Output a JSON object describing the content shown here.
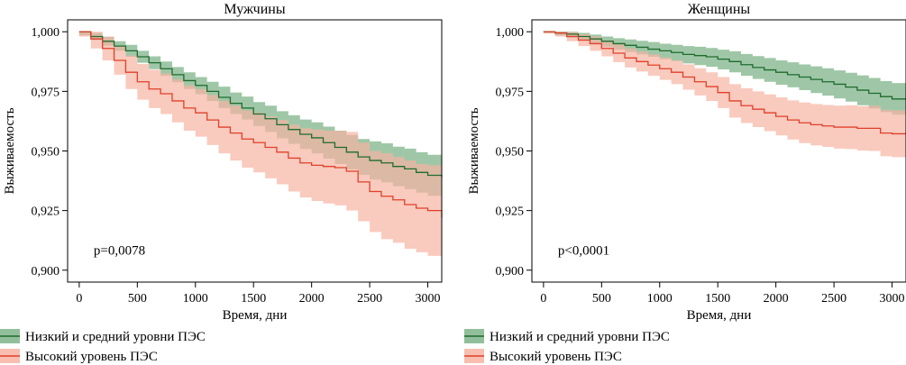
{
  "chart_data": [
    {
      "type": "line",
      "title": "Мужчины",
      "xlabel": "Время, дни",
      "ylabel": "Выживаемость",
      "xlim": [
        -100,
        3120
      ],
      "ylim": [
        0.895,
        1.005
      ],
      "xticks": [
        0,
        500,
        1000,
        1500,
        2000,
        2500,
        3000
      ],
      "xtick_labels": [
        "0",
        "500",
        "1000",
        "1500",
        "2000",
        "2500",
        "3000"
      ],
      "yticks": [
        0.9,
        0.925,
        0.95,
        0.975,
        1.0
      ],
      "ytick_labels": [
        "0,900",
        "0,925",
        "0,950",
        "0,975",
        "1,000"
      ],
      "annotation": "p=0,0078",
      "grid": false,
      "series": [
        {
          "name": "Низкий и средний уровни ПЭС",
          "color": "#1e6b2e",
          "band_color": "#7fb48a",
          "x": [
            0,
            100,
            200,
            300,
            400,
            500,
            600,
            700,
            800,
            900,
            1000,
            1100,
            1200,
            1300,
            1400,
            1500,
            1600,
            1700,
            1800,
            1900,
            2000,
            2100,
            2200,
            2300,
            2400,
            2500,
            2600,
            2700,
            2800,
            2900,
            3000,
            3120
          ],
          "y": [
            1.0,
            0.998,
            0.996,
            0.994,
            0.992,
            0.9895,
            0.987,
            0.9845,
            0.982,
            0.9795,
            0.9775,
            0.975,
            0.9725,
            0.97,
            0.968,
            0.9655,
            0.9635,
            0.961,
            0.959,
            0.957,
            0.9555,
            0.9535,
            0.9515,
            0.9495,
            0.9475,
            0.946,
            0.945,
            0.9435,
            0.9425,
            0.941,
            0.9398,
            0.939
          ],
          "lower": [
            0.9985,
            0.9965,
            0.9942,
            0.992,
            0.9895,
            0.987,
            0.9843,
            0.9815,
            0.9788,
            0.976,
            0.9738,
            0.971,
            0.968,
            0.9655,
            0.9632,
            0.9605,
            0.958,
            0.9553,
            0.953,
            0.9508,
            0.949,
            0.9468,
            0.9445,
            0.9423,
            0.94,
            0.938,
            0.9368,
            0.9352,
            0.934,
            0.9325,
            0.9312,
            0.9305
          ],
          "upper": [
            1.0,
            0.9995,
            0.9978,
            0.996,
            0.9945,
            0.992,
            0.9897,
            0.9875,
            0.9852,
            0.983,
            0.981,
            0.979,
            0.977,
            0.9745,
            0.9728,
            0.9705,
            0.969,
            0.9667,
            0.965,
            0.9632,
            0.962,
            0.9602,
            0.9585,
            0.9567,
            0.955,
            0.954,
            0.9532,
            0.9518,
            0.951,
            0.9495,
            0.9484,
            0.9475
          ]
        },
        {
          "name": "Высокий уровень ПЭС",
          "color": "#e0402a",
          "band_color": "#f7b3a2",
          "x": [
            0,
            100,
            200,
            300,
            400,
            500,
            600,
            700,
            800,
            900,
            1000,
            1100,
            1200,
            1300,
            1400,
            1500,
            1600,
            1700,
            1800,
            1900,
            2000,
            2100,
            2200,
            2300,
            2400,
            2500,
            2600,
            2700,
            2800,
            2900,
            3000,
            3120
          ],
          "y": [
            1.0,
            0.997,
            0.993,
            0.988,
            0.983,
            0.979,
            0.976,
            0.974,
            0.971,
            0.968,
            0.966,
            0.963,
            0.96,
            0.9575,
            0.955,
            0.9535,
            0.9515,
            0.9495,
            0.947,
            0.945,
            0.944,
            0.9435,
            0.943,
            0.9415,
            0.937,
            0.933,
            0.931,
            0.9295,
            0.9275,
            0.926,
            0.925,
            0.922
          ],
          "lower": [
            0.998,
            0.993,
            0.988,
            0.982,
            0.976,
            0.9715,
            0.968,
            0.9655,
            0.962,
            0.9585,
            0.956,
            0.9525,
            0.949,
            0.946,
            0.943,
            0.941,
            0.9385,
            0.936,
            0.933,
            0.9305,
            0.929,
            0.928,
            0.9272,
            0.925,
            0.9205,
            0.916,
            0.913,
            0.9115,
            0.909,
            0.9075,
            0.906,
            0.9075
          ],
          "upper": [
            1.0,
            1.0,
            0.998,
            0.994,
            0.99,
            0.9865,
            0.984,
            0.9825,
            0.98,
            0.9775,
            0.976,
            0.9735,
            0.971,
            0.969,
            0.967,
            0.966,
            0.9645,
            0.963,
            0.961,
            0.9595,
            0.959,
            0.9585,
            0.9585,
            0.958,
            0.9535,
            0.95,
            0.949,
            0.9475,
            0.946,
            0.9445,
            0.944,
            0.9365
          ]
        }
      ]
    },
    {
      "type": "line",
      "title": "Женщины",
      "xlabel": "Время, дни",
      "ylabel": "Выживаемость",
      "xlim": [
        -100,
        3120
      ],
      "ylim": [
        0.895,
        1.005
      ],
      "xticks": [
        0,
        500,
        1000,
        1500,
        2000,
        2500,
        3000
      ],
      "xtick_labels": [
        "0",
        "500",
        "1000",
        "1500",
        "2000",
        "2500",
        "3000"
      ],
      "yticks": [
        0.9,
        0.925,
        0.95,
        0.975,
        1.0
      ],
      "ytick_labels": [
        "0,900",
        "0,925",
        "0,950",
        "0,975",
        "1,000"
      ],
      "annotation": "p<0,0001",
      "grid": false,
      "series": [
        {
          "name": "Низкий и средний уровни ПЭС",
          "color": "#1e6b2e",
          "band_color": "#7fb48a",
          "x": [
            0,
            100,
            200,
            300,
            400,
            500,
            600,
            700,
            800,
            900,
            1000,
            1100,
            1200,
            1300,
            1400,
            1500,
            1600,
            1700,
            1800,
            1900,
            2000,
            2100,
            2200,
            2300,
            2400,
            2500,
            2600,
            2700,
            2800,
            2900,
            3000,
            3120
          ],
          "y": [
            1.0,
            0.9995,
            0.999,
            0.998,
            0.997,
            0.996,
            0.995,
            0.9943,
            0.9935,
            0.9927,
            0.992,
            0.9913,
            0.9905,
            0.99,
            0.9895,
            0.9885,
            0.9875,
            0.9862,
            0.985,
            0.984,
            0.983,
            0.982,
            0.981,
            0.98,
            0.979,
            0.978,
            0.9768,
            0.9755,
            0.9742,
            0.9728,
            0.9718,
            0.9712
          ],
          "lower": [
            0.9995,
            0.9985,
            0.9975,
            0.9962,
            0.995,
            0.9937,
            0.9925,
            0.9915,
            0.9905,
            0.9895,
            0.9885,
            0.9877,
            0.9867,
            0.986,
            0.9853,
            0.9842,
            0.983,
            0.9815,
            0.9802,
            0.979,
            0.9778,
            0.9767,
            0.9755,
            0.9743,
            0.9732,
            0.972,
            0.9707,
            0.9692,
            0.9678,
            0.9663,
            0.9652,
            0.9645
          ],
          "upper": [
            1.0,
            1.0,
            1.0,
            0.9995,
            0.9988,
            0.998,
            0.9973,
            0.9968,
            0.9962,
            0.9957,
            0.995,
            0.9945,
            0.994,
            0.9937,
            0.9932,
            0.9925,
            0.9918,
            0.9907,
            0.9898,
            0.989,
            0.988,
            0.9872,
            0.9863,
            0.9855,
            0.9847,
            0.9838,
            0.9828,
            0.9817,
            0.9806,
            0.9793,
            0.9785,
            0.978
          ]
        },
        {
          "name": "Высокий уровень ПЭС",
          "color": "#e0402a",
          "band_color": "#f7b3a2",
          "x": [
            0,
            100,
            200,
            300,
            400,
            500,
            600,
            700,
            800,
            900,
            1000,
            1100,
            1200,
            1300,
            1400,
            1500,
            1600,
            1700,
            1800,
            1900,
            2000,
            2100,
            2200,
            2300,
            2400,
            2500,
            2600,
            2700,
            2800,
            2900,
            3000,
            3120
          ],
          "y": [
            1.0,
            0.9995,
            0.998,
            0.9965,
            0.995,
            0.993,
            0.991,
            0.989,
            0.9875,
            0.986,
            0.9845,
            0.983,
            0.981,
            0.979,
            0.977,
            0.9745,
            0.971,
            0.969,
            0.9675,
            0.966,
            0.9645,
            0.963,
            0.9618,
            0.961,
            0.9605,
            0.96,
            0.96,
            0.9595,
            0.9595,
            0.9575,
            0.9572,
            0.957
          ],
          "lower": [
            0.9992,
            0.998,
            0.996,
            0.994,
            0.992,
            0.9897,
            0.9873,
            0.985,
            0.9833,
            0.9815,
            0.9798,
            0.978,
            0.9757,
            0.9733,
            0.971,
            0.968,
            0.964,
            0.9617,
            0.96,
            0.9583,
            0.9565,
            0.9548,
            0.9533,
            0.9523,
            0.9517,
            0.951,
            0.9508,
            0.9502,
            0.95,
            0.9478,
            0.9474,
            0.9472
          ],
          "upper": [
            1.0,
            1.0,
            0.9998,
            0.999,
            0.998,
            0.9963,
            0.9947,
            0.993,
            0.9917,
            0.9905,
            0.9892,
            0.988,
            0.9863,
            0.9847,
            0.983,
            0.981,
            0.978,
            0.9763,
            0.975,
            0.9737,
            0.9725,
            0.9712,
            0.9703,
            0.9697,
            0.9693,
            0.969,
            0.9692,
            0.9688,
            0.969,
            0.9672,
            0.967,
            0.9668
          ]
        }
      ]
    }
  ],
  "legend": [
    {
      "label": "Низкий и средний уровни ПЭС",
      "color": "#1e6b2e"
    },
    {
      "label": "Высокий уровень ПЭС",
      "color": "#e0402a"
    }
  ]
}
